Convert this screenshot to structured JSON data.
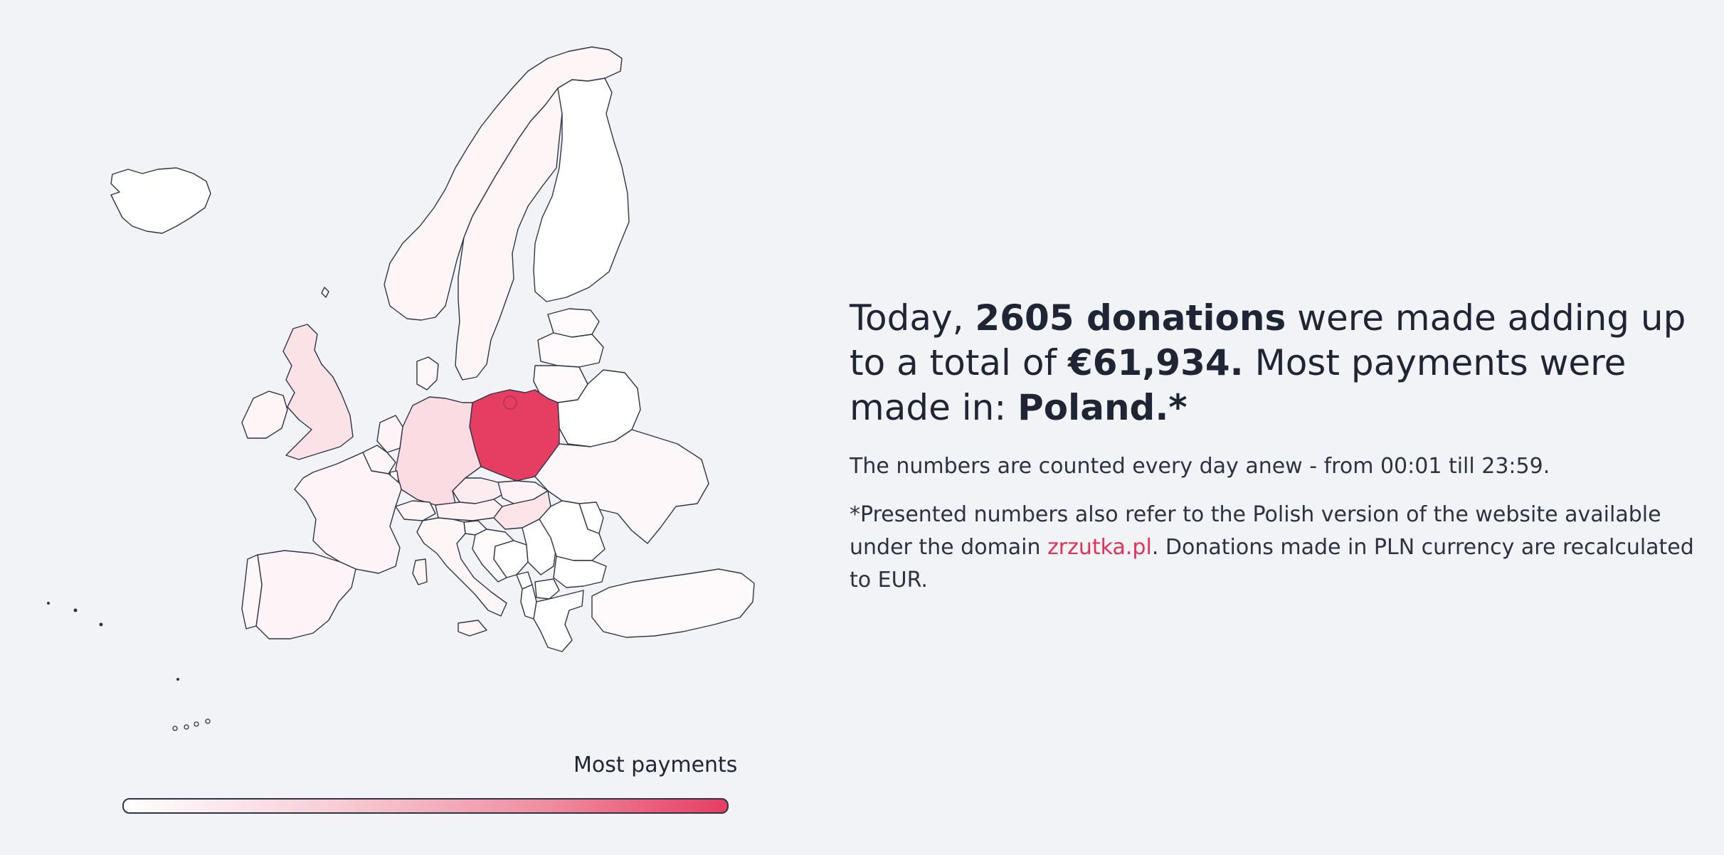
{
  "headline": {
    "prefix": "Today, ",
    "donations_count": "2605 donations",
    "middle": " were made adding up to a total of ",
    "amount": "€61,934.",
    "after_amount": " Most payments were made in: ",
    "top_country": "Poland.*"
  },
  "notes": {
    "counting": "The numbers are counted every day anew - from 00:01 till 23:59.",
    "disclaimer_before_link": "*Presented numbers also refer to the Polish version of the website available under the domain ",
    "disclaimer_link": "zrzutka.pl",
    "disclaimer_after_link": ". Donations made in PLN currency are recalculated to EUR."
  },
  "legend": {
    "label": "Most payments",
    "gradient_start": "#ffffff",
    "gradient_end": "#e63e62"
  },
  "colors": {
    "background": "#f2f3f7",
    "accent": "#e33257",
    "highest": "#e63e62",
    "border": "#2f3547"
  },
  "countries": [
    {
      "name": "Poland",
      "intensity": 1.0
    },
    {
      "name": "Germany",
      "intensity": 0.18
    },
    {
      "name": "United Kingdom",
      "intensity": 0.15
    },
    {
      "name": "Hungary",
      "intensity": 0.14
    },
    {
      "name": "Czechia",
      "intensity": 0.1
    },
    {
      "name": "Norway",
      "intensity": 0.05
    },
    {
      "name": "Sweden",
      "intensity": 0.05
    },
    {
      "name": "France",
      "intensity": 0.06
    },
    {
      "name": "Spain",
      "intensity": 0.06
    },
    {
      "name": "Italy",
      "intensity": 0.05
    },
    {
      "name": "Austria",
      "intensity": 0.08
    },
    {
      "name": "Ireland",
      "intensity": 0.05
    },
    {
      "name": "Netherlands",
      "intensity": 0.06
    },
    {
      "name": "Belgium",
      "intensity": 0.05
    },
    {
      "name": "Switzerland",
      "intensity": 0.05
    },
    {
      "name": "Ukraine",
      "intensity": 0.04
    },
    {
      "name": "Slovakia",
      "intensity": 0.06
    },
    {
      "name": "Lithuania",
      "intensity": 0.03
    },
    {
      "name": "Latvia",
      "intensity": 0.02
    },
    {
      "name": "Estonia",
      "intensity": 0.02
    },
    {
      "name": "Denmark",
      "intensity": 0.04
    },
    {
      "name": "Portugal",
      "intensity": 0.04
    },
    {
      "name": "Turkey",
      "intensity": 0.03
    },
    {
      "name": "Finland",
      "intensity": 0.0
    },
    {
      "name": "Iceland",
      "intensity": 0.0
    },
    {
      "name": "Belarus",
      "intensity": 0.0
    },
    {
      "name": "Romania",
      "intensity": 0.0
    },
    {
      "name": "Bulgaria",
      "intensity": 0.0
    },
    {
      "name": "Greece",
      "intensity": 0.0
    },
    {
      "name": "Serbia",
      "intensity": 0.0
    },
    {
      "name": "Croatia",
      "intensity": 0.02
    },
    {
      "name": "Slovenia",
      "intensity": 0.02
    },
    {
      "name": "Bosnia and Herzegovina",
      "intensity": 0.0
    },
    {
      "name": "Moldova",
      "intensity": 0.0
    },
    {
      "name": "Albania",
      "intensity": 0.0
    },
    {
      "name": "North Macedonia",
      "intensity": 0.0
    },
    {
      "name": "Montenegro",
      "intensity": 0.0
    },
    {
      "name": "Luxembourg",
      "intensity": 0.03
    }
  ]
}
